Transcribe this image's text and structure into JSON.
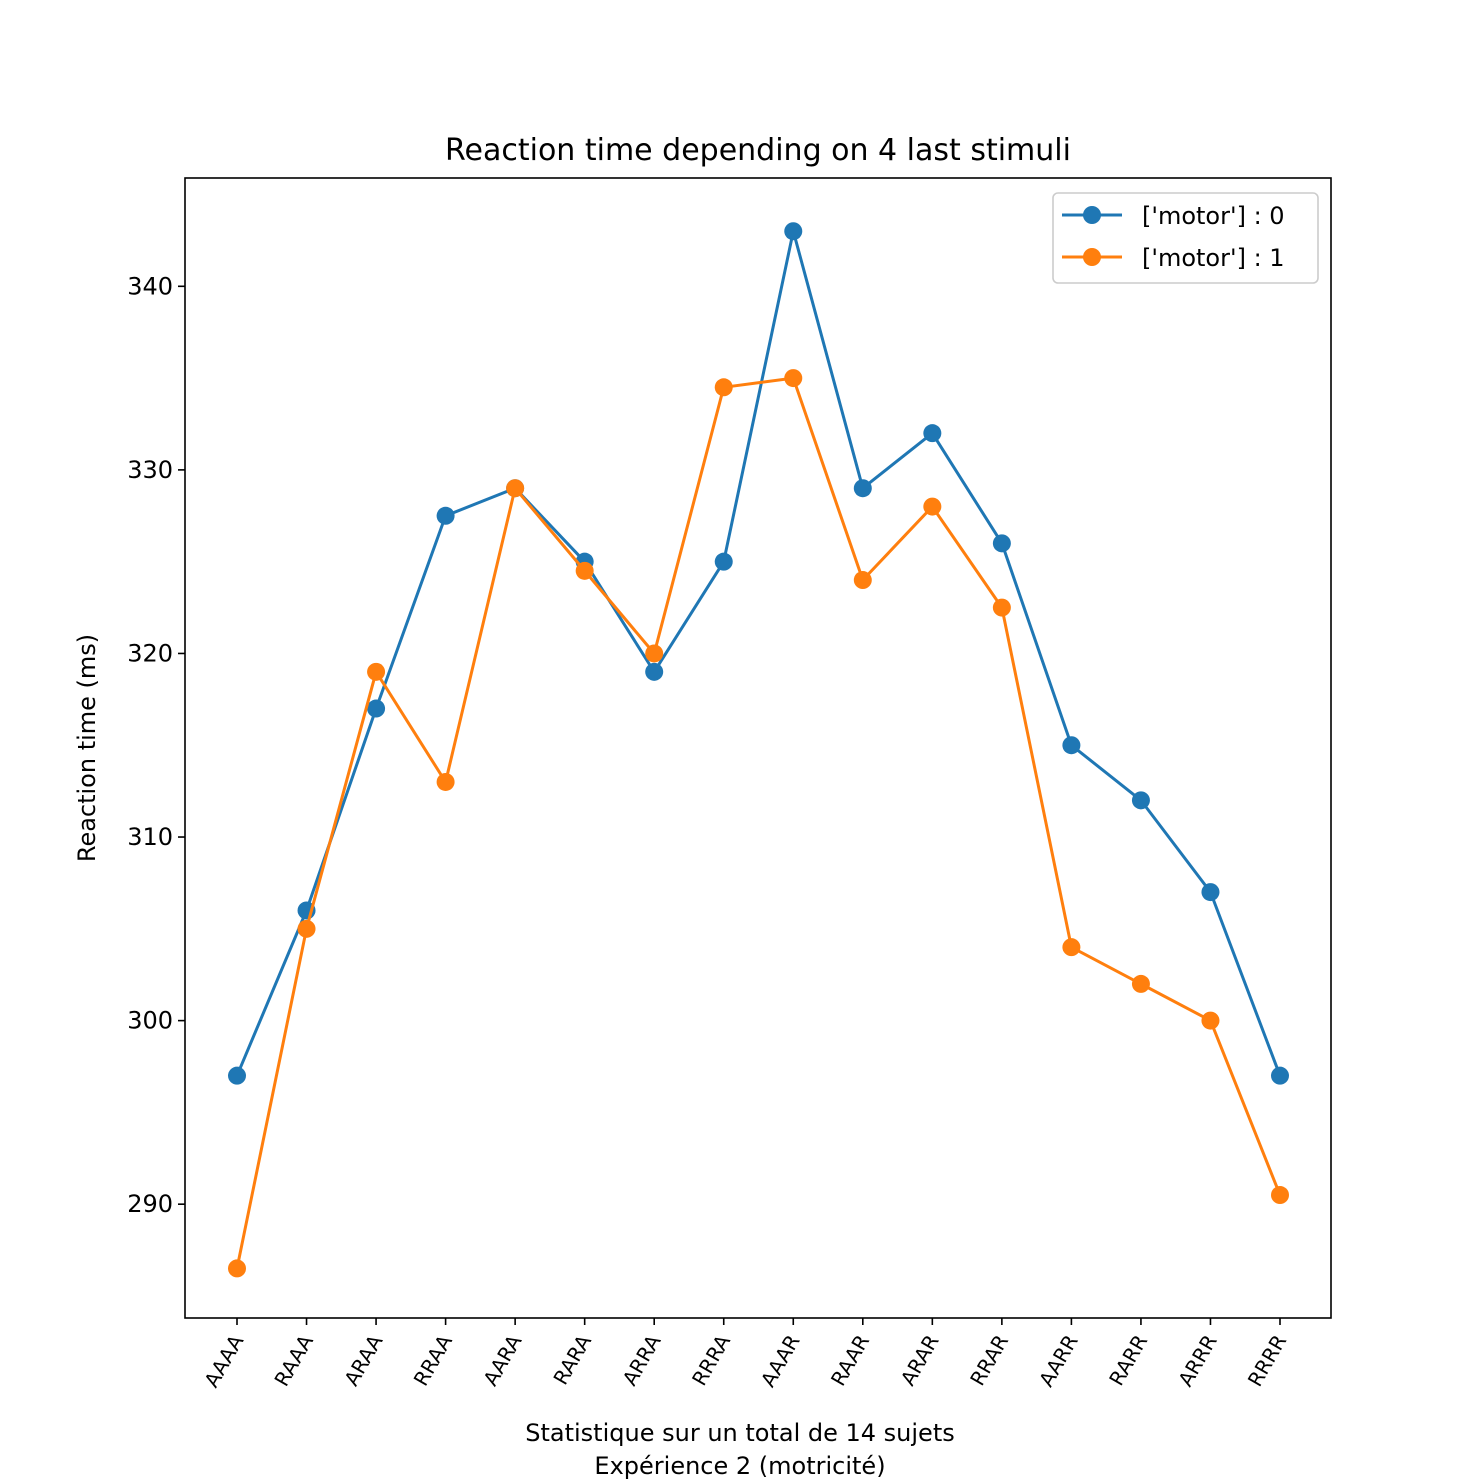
{
  "chart_data": {
    "type": "line",
    "title": "Reaction time depending on 4 last stimuli",
    "xlabel_line1": "Statistique sur un total de 14 sujets",
    "xlabel_line2": "Expérience 2 (motricité)",
    "ylabel": "Reaction time (ms)",
    "categories": [
      "AAAA",
      "RAAA",
      "ARAA",
      "RRAA",
      "AARA",
      "RARA",
      "ARRA",
      "RRRA",
      "AAAR",
      "RAAR",
      "ARAR",
      "RRAR",
      "AARR",
      "RARR",
      "ARRR",
      "RRRR"
    ],
    "ylim": [
      283.8,
      345.9
    ],
    "yticks": [
      290,
      300,
      310,
      320,
      330,
      340
    ],
    "grid": false,
    "legend_position": "upper right",
    "series": [
      {
        "name": "['motor'] : 0",
        "color": "#1f77b4",
        "values": [
          297,
          306,
          317,
          327.5,
          329,
          325,
          319,
          325,
          343,
          329,
          332,
          326,
          315,
          312,
          307,
          297
        ]
      },
      {
        "name": "['motor'] : 1",
        "color": "#ff7f0e",
        "values": [
          286.5,
          305,
          319,
          313,
          329,
          324.5,
          320,
          334.5,
          335,
          324,
          328,
          322.5,
          304,
          302,
          300,
          290.5
        ]
      }
    ]
  }
}
